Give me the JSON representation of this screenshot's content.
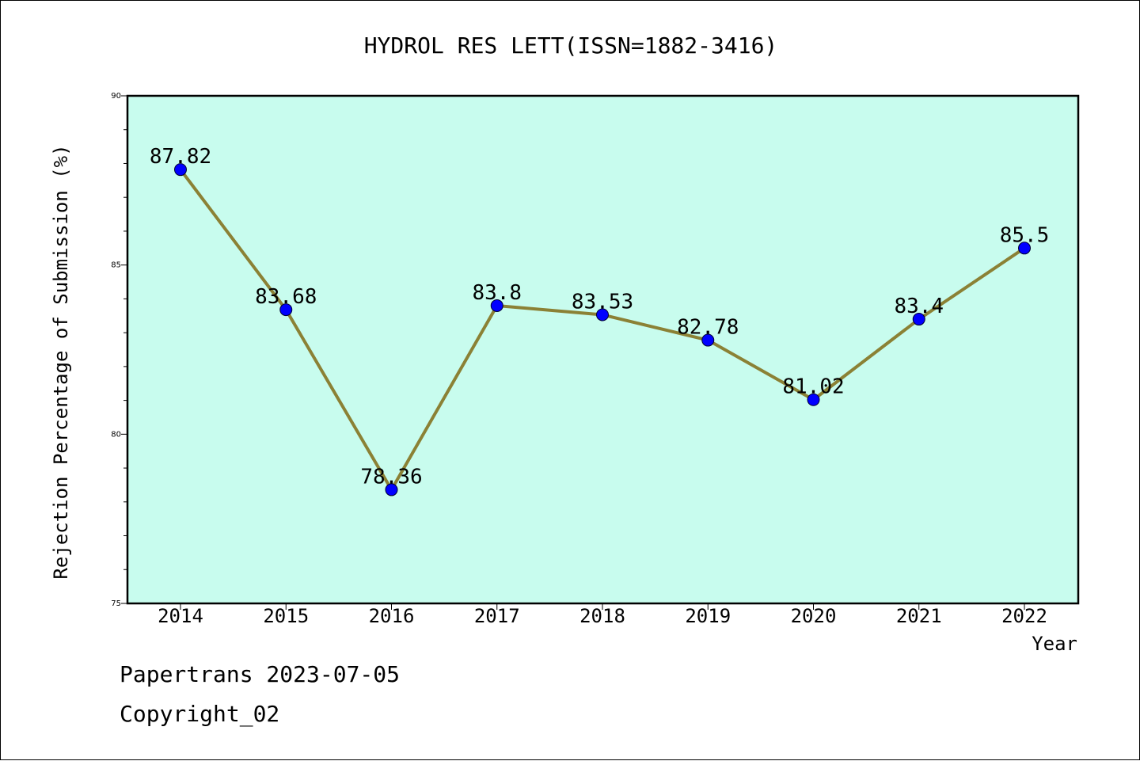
{
  "footer": {
    "line1": "Papertrans 2023-07-05",
    "line2": "Copyright_02"
  },
  "colors": {
    "plot_background": "#c8fcee",
    "line": "#8b8135",
    "marker": "#0000ff",
    "axes": "#000000"
  },
  "chart_data": {
    "type": "line",
    "title": "HYDROL RES LETT(ISSN=1882-3416)",
    "xlabel": "Year",
    "ylabel": "Rejection Percentage of Submission (%)",
    "categories": [
      "2014",
      "2015",
      "2016",
      "2017",
      "2018",
      "2019",
      "2020",
      "2021",
      "2022"
    ],
    "series": [
      {
        "values": [
          87.82,
          83.68,
          78.36,
          83.8,
          83.53,
          82.78,
          81.02,
          83.4,
          85.5
        ],
        "labels": [
          "87.82",
          "83.68",
          "78.36",
          "83.8",
          "83.53",
          "82.78",
          "81.02",
          "83.4",
          "85.5"
        ]
      }
    ],
    "ylim": [
      75,
      90
    ],
    "yticks": [
      "75",
      "80",
      "85",
      "90"
    ],
    "yminor_step": 1,
    "grid": false,
    "legend": "none"
  }
}
